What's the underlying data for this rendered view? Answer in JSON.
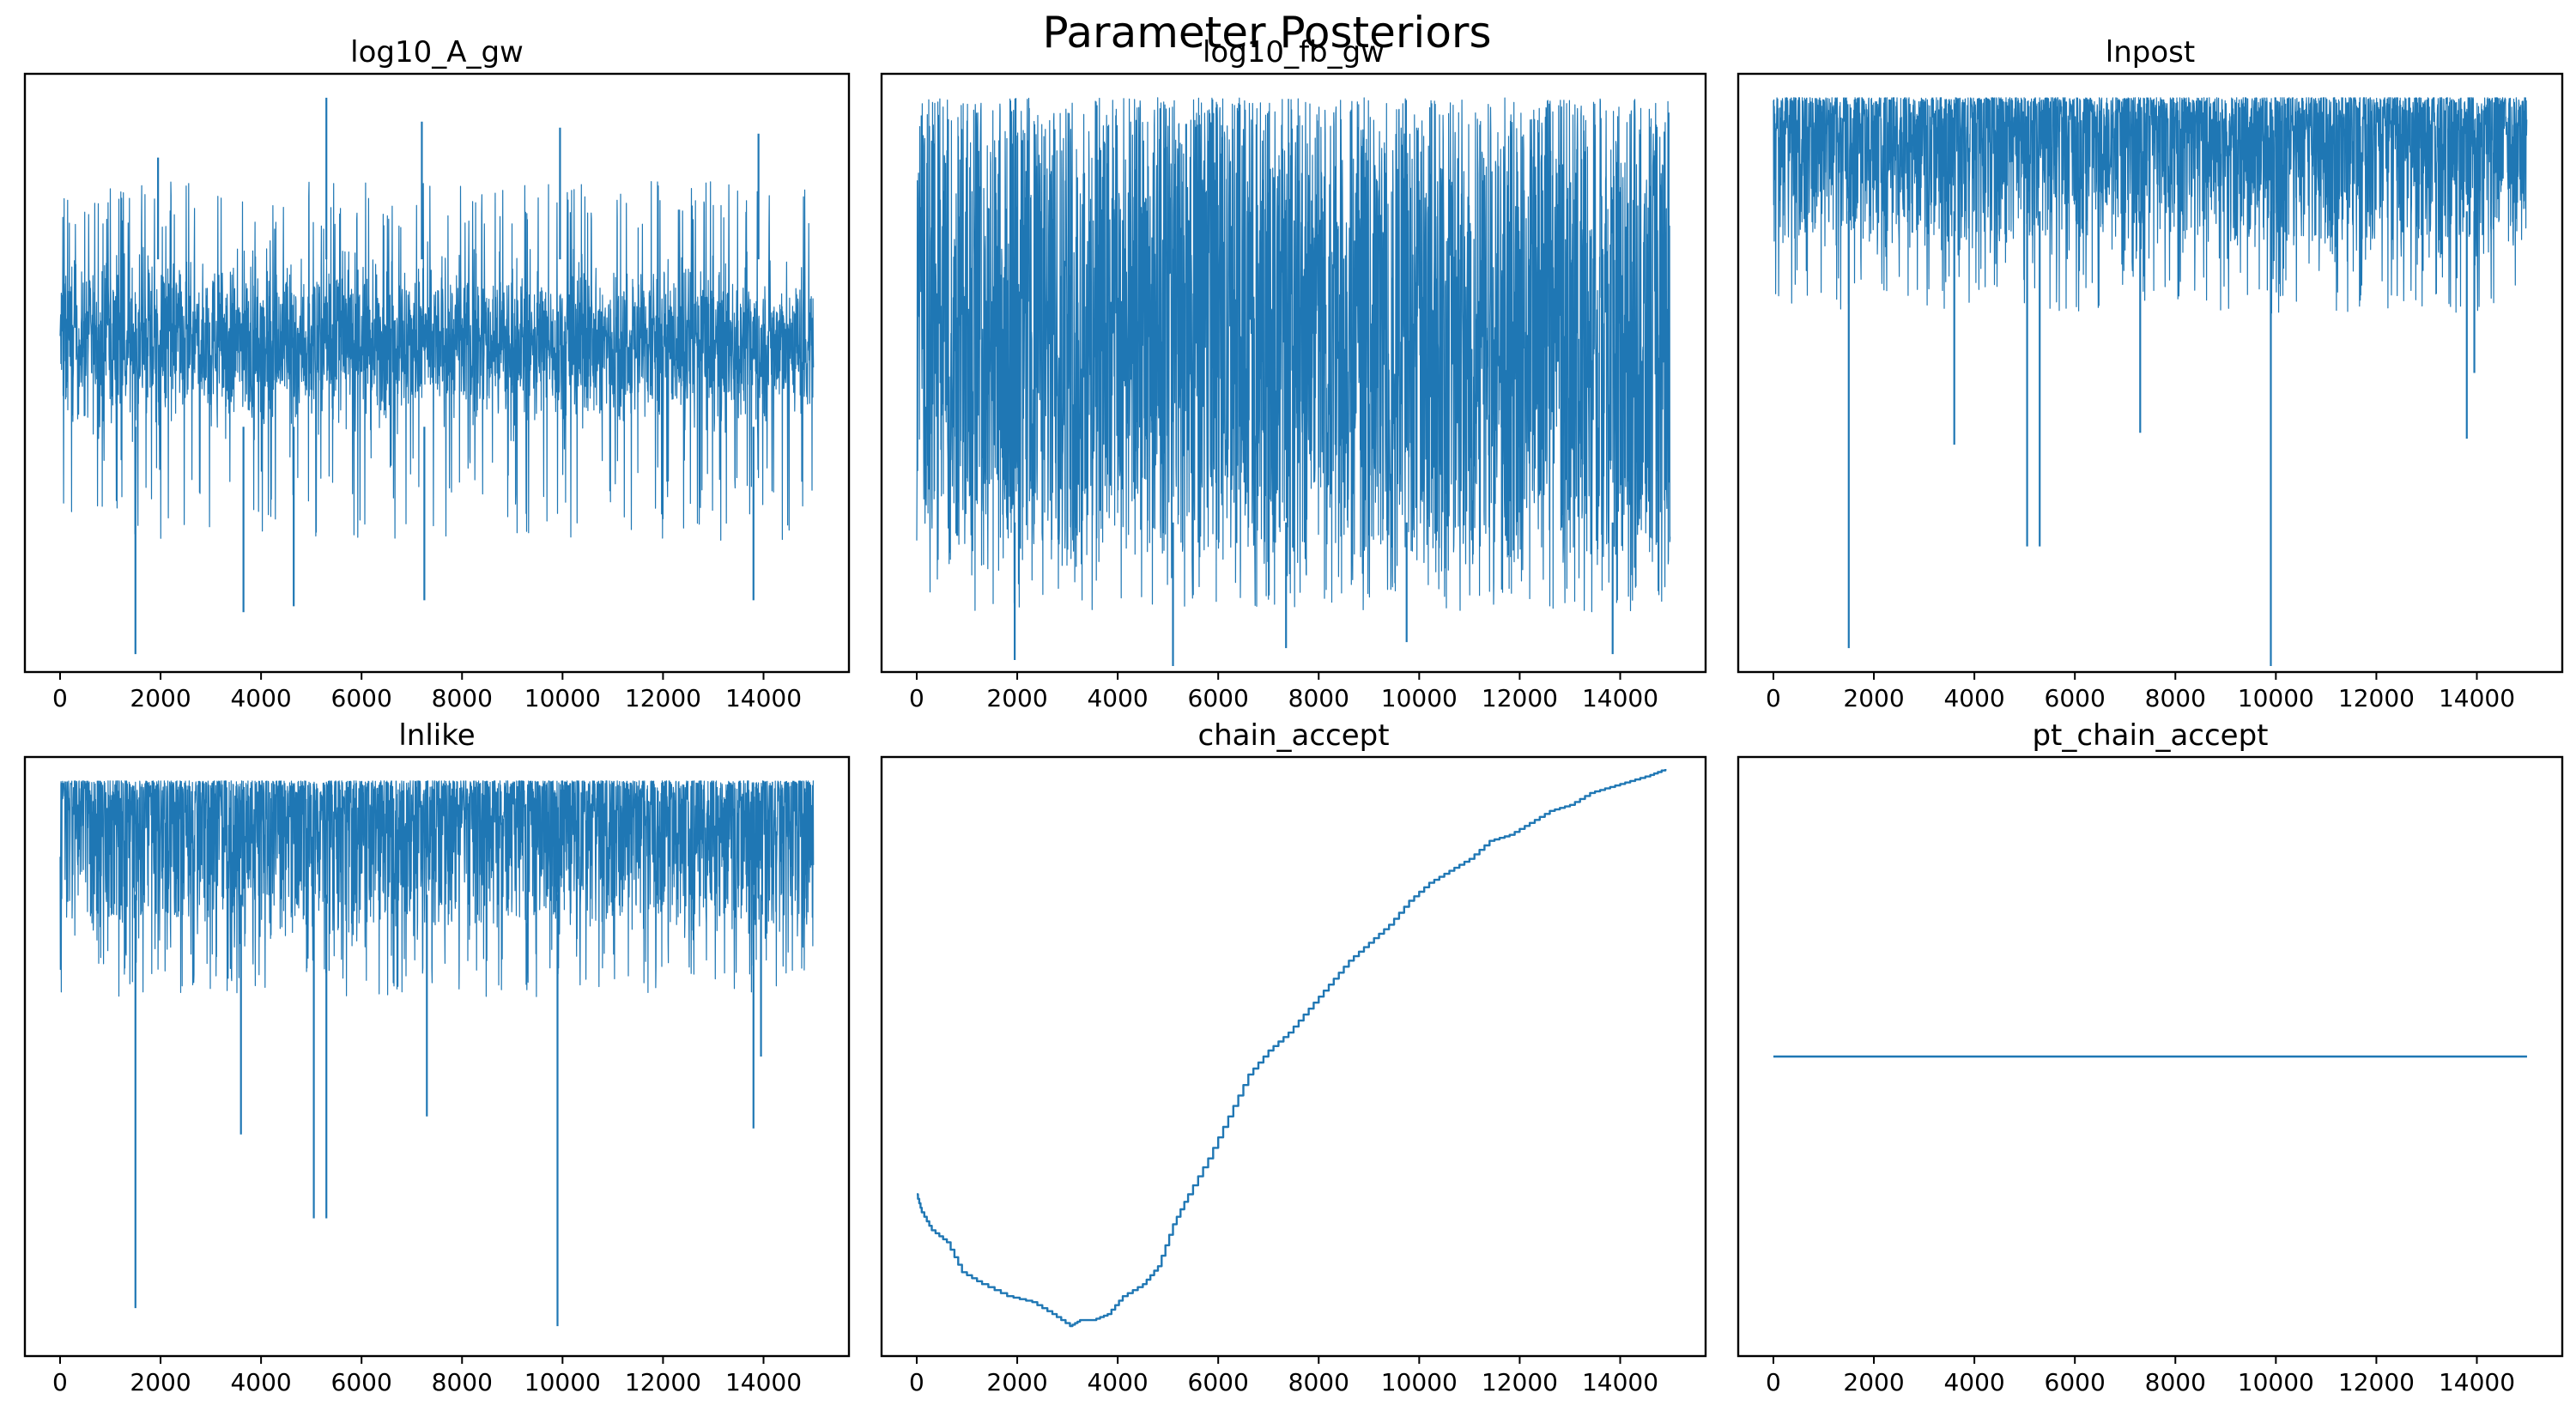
{
  "figure": {
    "title": "Parameter Posteriors"
  },
  "colors": {
    "line": "#1f77b4",
    "axes": "#000000",
    "background": "#ffffff"
  },
  "chart_data": [
    {
      "type": "line",
      "title": "log10_A_gw",
      "xlim": [
        -700,
        15700
      ],
      "x_ticks": [
        0,
        2000,
        4000,
        6000,
        8000,
        10000,
        12000,
        14000
      ],
      "x_tick_labels": [
        "0",
        "2000",
        "4000",
        "6000",
        "8000",
        "10000",
        "12000",
        "14000"
      ],
      "y_ticks_shown": false,
      "n_samples": 15000,
      "style": "noisy",
      "band_low": 0.36,
      "band_high": 0.74,
      "lower_spikes": [
        [
          1500,
          0.03
        ],
        [
          3650,
          0.1
        ],
        [
          4650,
          0.11
        ],
        [
          7250,
          0.12
        ],
        [
          13800,
          0.12
        ]
      ],
      "upper_spikes": [
        [
          5300,
          0.96
        ],
        [
          7200,
          0.92
        ],
        [
          9950,
          0.91
        ],
        [
          1950,
          0.86
        ],
        [
          13900,
          0.9
        ]
      ]
    },
    {
      "type": "line",
      "title": "log10_fb_gw",
      "xlim": [
        -700,
        15700
      ],
      "x_ticks": [
        0,
        2000,
        4000,
        6000,
        8000,
        10000,
        12000,
        14000
      ],
      "x_tick_labels": [
        "0",
        "2000",
        "4000",
        "6000",
        "8000",
        "10000",
        "12000",
        "14000"
      ],
      "y_ticks_shown": false,
      "n_samples": 15000,
      "style": "dense",
      "band_low": 0.2,
      "band_high": 0.93,
      "lower_spikes": [
        [
          5100,
          0.01
        ],
        [
          1950,
          0.02
        ],
        [
          13850,
          0.03
        ],
        [
          7350,
          0.04
        ],
        [
          9750,
          0.05
        ]
      ],
      "upper_spikes": []
    },
    {
      "type": "line",
      "title": "lnpost",
      "xlim": [
        -700,
        15700
      ],
      "x_ticks": [
        0,
        2000,
        4000,
        6000,
        8000,
        10000,
        12000,
        14000
      ],
      "x_tick_labels": [
        "0",
        "2000",
        "4000",
        "6000",
        "8000",
        "10000",
        "12000",
        "14000"
      ],
      "y_ticks_shown": false,
      "n_samples": 15000,
      "style": "topheavy",
      "band_low": 0.72,
      "band_high": 0.96,
      "lower_spikes": [
        [
          1500,
          0.04
        ],
        [
          9900,
          0.01
        ],
        [
          5050,
          0.21
        ],
        [
          5300,
          0.21
        ],
        [
          3600,
          0.38
        ],
        [
          7300,
          0.4
        ],
        [
          13800,
          0.39
        ],
        [
          13950,
          0.5
        ]
      ],
      "upper_spikes": []
    },
    {
      "type": "line",
      "title": "lnlike",
      "xlim": [
        -700,
        15700
      ],
      "x_ticks": [
        0,
        2000,
        4000,
        6000,
        8000,
        10000,
        12000,
        14000
      ],
      "x_tick_labels": [
        "0",
        "2000",
        "4000",
        "6000",
        "8000",
        "10000",
        "12000",
        "14000"
      ],
      "y_ticks_shown": false,
      "n_samples": 15000,
      "style": "topheavy",
      "band_low": 0.72,
      "band_high": 0.96,
      "lower_spikes": [
        [
          1500,
          0.08
        ],
        [
          9900,
          0.05
        ],
        [
          5050,
          0.23
        ],
        [
          5300,
          0.23
        ],
        [
          3600,
          0.37
        ],
        [
          7300,
          0.4
        ],
        [
          13800,
          0.38
        ],
        [
          13950,
          0.5
        ]
      ],
      "upper_spikes": []
    },
    {
      "type": "line",
      "title": "chain_accept",
      "xlim": [
        -700,
        15700
      ],
      "x_ticks": [
        0,
        2000,
        4000,
        6000,
        8000,
        10000,
        12000,
        14000
      ],
      "x_tick_labels": [
        "0",
        "2000",
        "4000",
        "6000",
        "8000",
        "10000",
        "12000",
        "14000"
      ],
      "y_ticks_shown": false,
      "style": "step",
      "x": [
        0,
        100,
        300,
        600,
        900,
        1300,
        1800,
        2300,
        2700,
        3050,
        3250,
        3500,
        3800,
        4100,
        4500,
        4800,
        5100,
        5400,
        5800,
        6200,
        6600,
        7000,
        7400,
        7800,
        8200,
        8600,
        9000,
        9400,
        9800,
        10200,
        10600,
        11000,
        11400,
        11800,
        12200,
        12600,
        13000,
        13400,
        13800,
        14200,
        14600,
        14900
      ],
      "y": [
        0.27,
        0.24,
        0.21,
        0.19,
        0.14,
        0.12,
        0.1,
        0.09,
        0.07,
        0.05,
        0.06,
        0.06,
        0.07,
        0.1,
        0.12,
        0.15,
        0.22,
        0.27,
        0.33,
        0.4,
        0.47,
        0.51,
        0.54,
        0.58,
        0.62,
        0.66,
        0.69,
        0.72,
        0.76,
        0.79,
        0.81,
        0.83,
        0.86,
        0.87,
        0.89,
        0.91,
        0.92,
        0.94,
        0.95,
        0.96,
        0.97,
        0.98
      ]
    },
    {
      "type": "line",
      "title": "pt_chain_accept",
      "xlim": [
        -700,
        15700
      ],
      "x_ticks": [
        0,
        2000,
        4000,
        6000,
        8000,
        10000,
        12000,
        14000
      ],
      "x_tick_labels": [
        "0",
        "2000",
        "4000",
        "6000",
        "8000",
        "10000",
        "12000",
        "14000"
      ],
      "y_ticks_shown": false,
      "style": "constant",
      "x": [
        0,
        14999
      ],
      "y": [
        0.5,
        0.5
      ]
    }
  ]
}
